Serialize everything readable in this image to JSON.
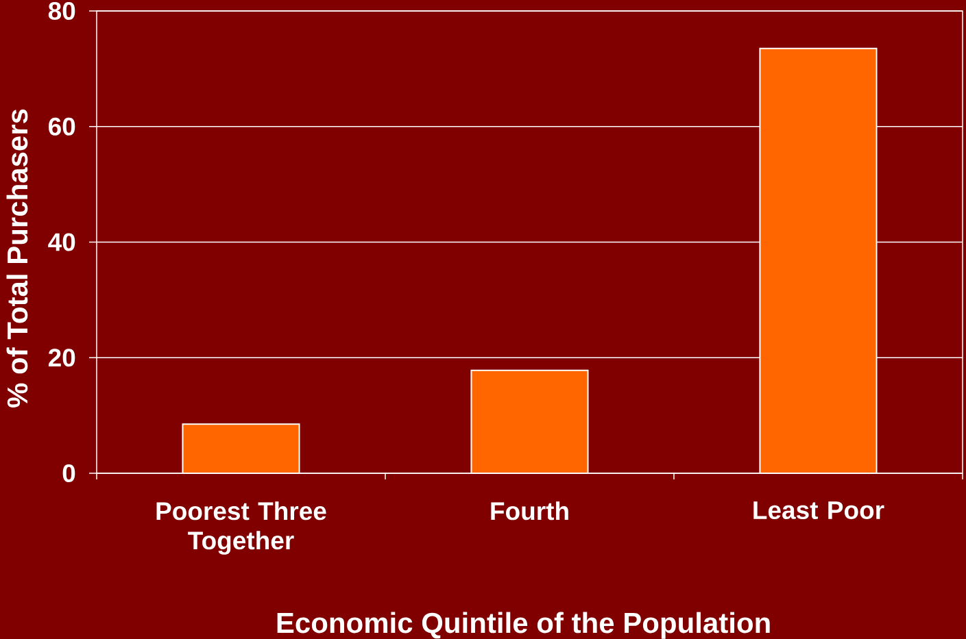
{
  "chart_data": {
    "type": "bar",
    "xlabel": "Economic Quintile of the Population",
    "ylabel": "% of Total Purchasers",
    "categories": [
      "Poorest Three Together",
      "Fourth",
      "Least Poor"
    ],
    "values": [
      8.5,
      17.8,
      73.5
    ],
    "color": "#ff6600",
    "ylim": [
      0,
      80
    ],
    "yticks": [
      0,
      20,
      40,
      60,
      80
    ],
    "grid": "y"
  }
}
